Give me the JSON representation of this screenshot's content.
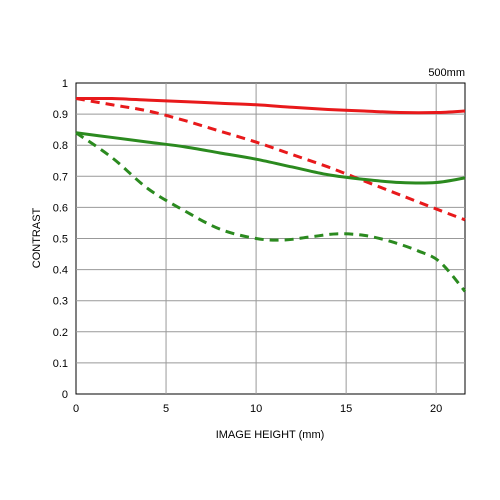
{
  "chart_data": {
    "type": "line",
    "title": "",
    "annotation": "500mm",
    "xlabel": "IMAGE HEIGHT (mm)",
    "ylabel": "CONTRAST",
    "xlim": [
      0,
      21.6
    ],
    "ylim": [
      0,
      1
    ],
    "x_ticks": [
      0,
      5,
      10,
      15,
      20
    ],
    "y_ticks": [
      0,
      0.1,
      0.2,
      0.3,
      0.4,
      0.5,
      0.6,
      0.7,
      0.8,
      0.9,
      1
    ],
    "y_tick_labels": [
      "0",
      "0.1",
      "0.2",
      "0.3",
      "0.4",
      "0.5",
      "0.6",
      "0.7",
      "0.8",
      "0.9",
      "1"
    ],
    "grid": true,
    "series": [
      {
        "color": "#e8191b",
        "dash": "solid",
        "points": [
          [
            0,
            0.95
          ],
          [
            2,
            0.95
          ],
          [
            4,
            0.945
          ],
          [
            6,
            0.94
          ],
          [
            8,
            0.935
          ],
          [
            10,
            0.93
          ],
          [
            12,
            0.922
          ],
          [
            14,
            0.915
          ],
          [
            16,
            0.91
          ],
          [
            18,
            0.905
          ],
          [
            20,
            0.905
          ],
          [
            21.6,
            0.91
          ]
        ]
      },
      {
        "color": "#e8191b",
        "dash": "dashed",
        "points": [
          [
            0,
            0.95
          ],
          [
            2,
            0.93
          ],
          [
            4,
            0.91
          ],
          [
            6,
            0.88
          ],
          [
            8,
            0.845
          ],
          [
            10,
            0.81
          ],
          [
            12,
            0.77
          ],
          [
            14,
            0.73
          ],
          [
            16,
            0.685
          ],
          [
            18,
            0.64
          ],
          [
            20,
            0.595
          ],
          [
            21.6,
            0.56
          ]
        ]
      },
      {
        "color": "#2b8a1f",
        "dash": "solid",
        "points": [
          [
            0,
            0.84
          ],
          [
            2,
            0.825
          ],
          [
            4,
            0.81
          ],
          [
            6,
            0.795
          ],
          [
            8,
            0.775
          ],
          [
            10,
            0.755
          ],
          [
            12,
            0.73
          ],
          [
            14,
            0.705
          ],
          [
            16,
            0.69
          ],
          [
            18,
            0.68
          ],
          [
            20,
            0.68
          ],
          [
            21.6,
            0.695
          ]
        ]
      },
      {
        "color": "#2b8a1f",
        "dash": "dashed",
        "points": [
          [
            0,
            0.84
          ],
          [
            2,
            0.76
          ],
          [
            4,
            0.66
          ],
          [
            6,
            0.59
          ],
          [
            8,
            0.53
          ],
          [
            10,
            0.5
          ],
          [
            11.5,
            0.495
          ],
          [
            13,
            0.505
          ],
          [
            14.5,
            0.515
          ],
          [
            16,
            0.51
          ],
          [
            17.5,
            0.49
          ],
          [
            19,
            0.46
          ],
          [
            20.2,
            0.425
          ],
          [
            21.6,
            0.33
          ]
        ]
      }
    ]
  }
}
